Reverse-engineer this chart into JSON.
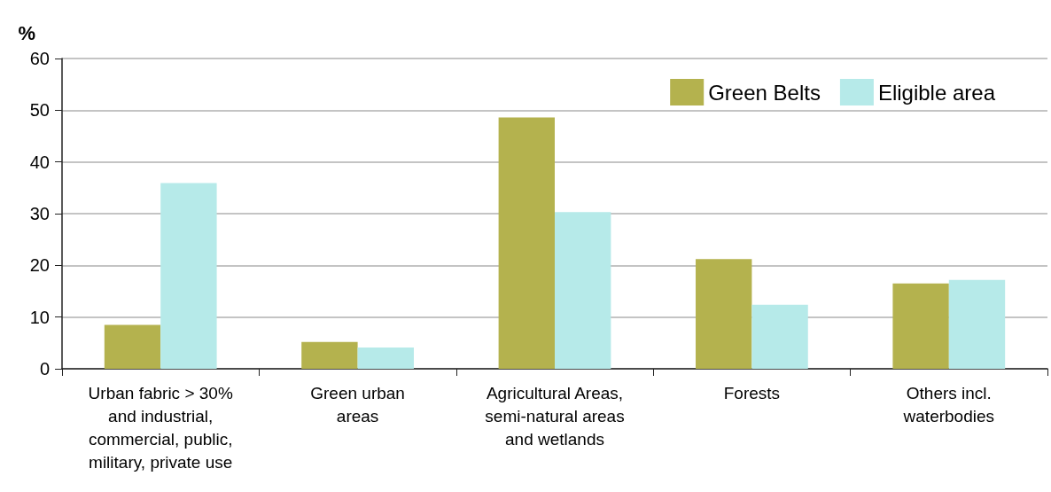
{
  "chart_data": {
    "type": "bar",
    "ylabel": "%",
    "categories": [
      "Urban fabric > 30%\nand industrial,\ncommercial, public,\nmilitary, private use",
      "Green urban\nareas",
      "Agricultural Areas,\nsemi-natural areas\nand wetlands",
      "Forests",
      "Others incl.\nwaterbodies"
    ],
    "series": [
      {
        "name": "Green Belts",
        "color": "#b4b24e",
        "values": [
          8.5,
          5.2,
          48.6,
          21.2,
          16.5
        ]
      },
      {
        "name": "Eligible area",
        "color": "#b6eae9",
        "values": [
          35.9,
          4.1,
          30.3,
          12.4,
          17.2
        ]
      }
    ],
    "ylim": [
      0,
      60
    ],
    "yticks": [
      0,
      10,
      20,
      30,
      40,
      50,
      60
    ],
    "grid": "y",
    "legend": "top right"
  }
}
